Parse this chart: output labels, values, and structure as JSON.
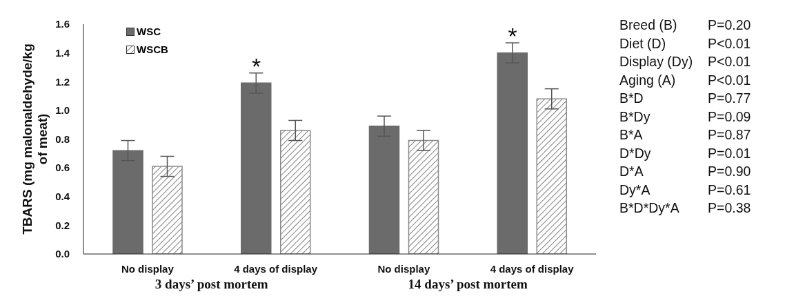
{
  "chart_data": {
    "type": "bar",
    "ylabel": "TBARS (mg malonaldehyde/kg of meat)",
    "categories": [
      "No display",
      "4 days of display",
      "No display",
      "4 days of display"
    ],
    "series": [
      {
        "name": "WSC",
        "color": "#6b6b6b",
        "values": [
          0.72,
          1.19,
          0.89,
          1.4
        ],
        "errors": [
          0.07,
          0.07,
          0.07,
          0.07
        ]
      },
      {
        "name": "WSCB",
        "color": "#8a8a8a",
        "values": [
          0.61,
          0.86,
          0.79,
          1.08
        ],
        "errors": [
          0.07,
          0.07,
          0.07,
          0.07
        ]
      }
    ],
    "ylim": [
      0,
      1.6
    ],
    "yticks": [
      {
        "value": 0,
        "label": "0.0"
      },
      0.2,
      0.4,
      0.6,
      0.8,
      {
        "value": 1,
        "label": "1.0"
      },
      1.2,
      1.4,
      1.6
    ],
    "grid": false,
    "legend": "top left",
    "annotations": [
      "3 days’ post mortem",
      "14 days’ post mortem",
      "Breed (B)",
      "P=0.20",
      "Diet (D)",
      "P<0.01",
      "Display (Dy)",
      "P<0.01",
      "Aging (A)",
      "P<0.01",
      "B*D",
      "P=0.77",
      "B*Dy",
      "P=0.09",
      "B*A",
      "P=0.87",
      "D*Dy",
      "P=0.01",
      "D*A",
      "P=0.90",
      "Dy*A",
      "P=0.61",
      "B*D*Dy*A",
      "P=0.38",
      "*",
      "*"
    ]
  }
}
